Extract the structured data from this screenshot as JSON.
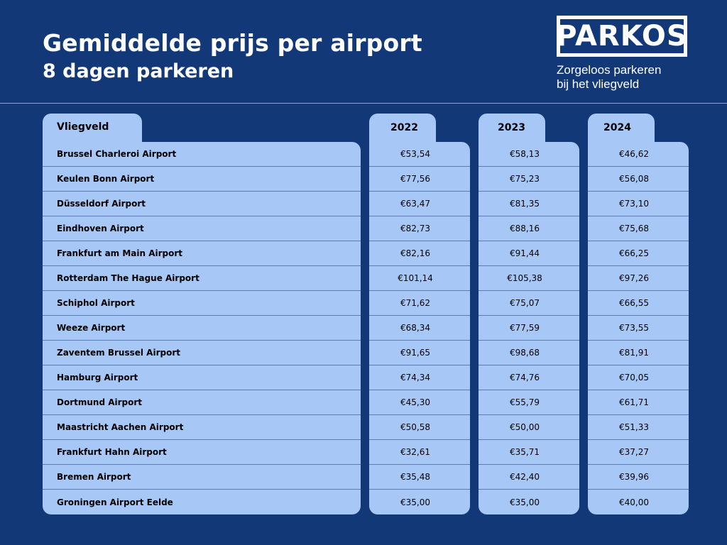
{
  "header": {
    "title": "Gemiddelde prijs per airport",
    "subtitle": "8 dagen parkeren"
  },
  "logo": {
    "brand": "PARKOS",
    "tagline_line1": "Zorgeloos parkeren",
    "tagline_line2": "bij het vliegveld"
  },
  "colors": {
    "background": "#133878",
    "table_fill": "#a7c8f6",
    "row_divider": "#5d7cb4"
  },
  "table": {
    "columns": [
      "Vliegveld",
      "2022",
      "2023",
      "2024"
    ],
    "rows": [
      {
        "airport": "Brussel Charleroi Airport",
        "y2022": "€53,54",
        "y2023": "€58,13",
        "y2024": "€46,62"
      },
      {
        "airport": "Keulen Bonn Airport",
        "y2022": "€77,56",
        "y2023": "€75,23",
        "y2024": "€56,08"
      },
      {
        "airport": "Düsseldorf Airport",
        "y2022": "€63,47",
        "y2023": "€81,35",
        "y2024": "€73,10"
      },
      {
        "airport": "Eindhoven Airport",
        "y2022": "€82,73",
        "y2023": "€88,16",
        "y2024": "€75,68"
      },
      {
        "airport": "Frankfurt am Main Airport",
        "y2022": "€82,16",
        "y2023": "€91,44",
        "y2024": "€66,25"
      },
      {
        "airport": "Rotterdam The Hague Airport",
        "y2022": "€101,14",
        "y2023": "€105,38",
        "y2024": "€97,26"
      },
      {
        "airport": "Schiphol Airport",
        "y2022": "€71,62",
        "y2023": "€75,07",
        "y2024": "€66,55"
      },
      {
        "airport": "Weeze Airport",
        "y2022": "€68,34",
        "y2023": "€77,59",
        "y2024": "€73,55"
      },
      {
        "airport": "Zaventem Brussel Airport",
        "y2022": "€91,65",
        "y2023": "€98,68",
        "y2024": "€81,91"
      },
      {
        "airport": "Hamburg Airport",
        "y2022": "€74,34",
        "y2023": "€74,76",
        "y2024": "€70,05"
      },
      {
        "airport": "Dortmund Airport",
        "y2022": "€45,30",
        "y2023": "€55,79",
        "y2024": "€61,71"
      },
      {
        "airport": "Maastricht Aachen Airport",
        "y2022": "€50,58",
        "y2023": "€50,00",
        "y2024": "€51,33"
      },
      {
        "airport": "Frankfurt Hahn Airport",
        "y2022": "€32,61",
        "y2023": "€35,71",
        "y2024": "€37,27"
      },
      {
        "airport": "Bremen Airport",
        "y2022": "€35,48",
        "y2023": "€42,40",
        "y2024": "€39,96"
      },
      {
        "airport": "Groningen Airport Eelde",
        "y2022": "€35,00",
        "y2023": "€35,00",
        "y2024": "€40,00"
      }
    ]
  }
}
